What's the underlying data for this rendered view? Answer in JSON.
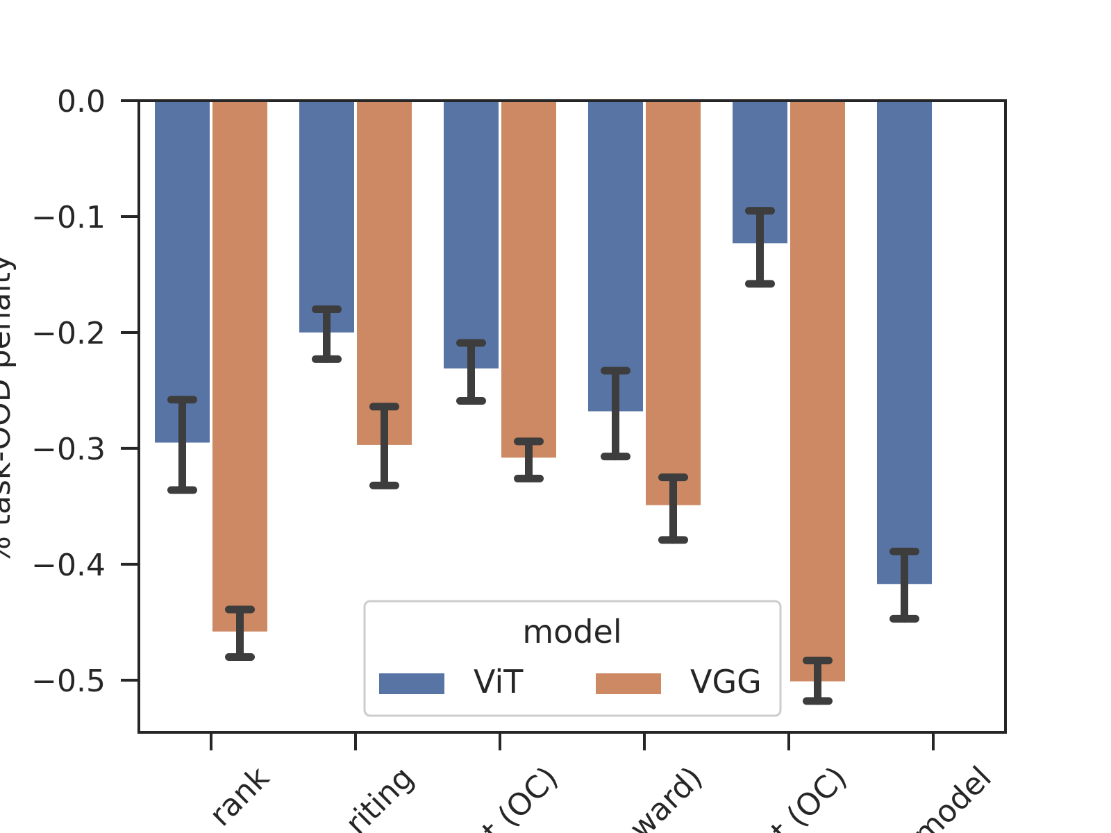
{
  "chart_data": {
    "type": "bar",
    "title": "",
    "xlabel": "",
    "ylabel": "% task-OOD penalty",
    "ylim": [
      -0.545,
      0.0
    ],
    "yticks": [
      0.0,
      -0.1,
      -0.2,
      -0.3,
      -0.4,
      -0.5
    ],
    "ytick_labels": [
      "0.0",
      "−0.1",
      "−0.2",
      "−0.3",
      "−0.4",
      "−0.5"
    ],
    "categories": [
      "Rerank",
      "Handwriting",
      "Font (OC)",
      "Reward (forward)",
      "Font (OC)",
      "model"
    ],
    "category_labels_visible": [
      "rank",
      "riting",
      "t (OC)",
      "ward)",
      "t (OC)",
      "model"
    ],
    "series": [
      {
        "name": "ViT",
        "color": "#5874a4",
        "values": [
          -0.295,
          -0.2,
          -0.231,
          -0.268,
          -0.123,
          -0.417
        ],
        "err_low": [
          -0.336,
          -0.223,
          -0.259,
          -0.307,
          -0.158,
          -0.447
        ],
        "err_high": [
          -0.258,
          -0.18,
          -0.209,
          -0.233,
          -0.095,
          -0.389
        ]
      },
      {
        "name": "VGG",
        "color": "#cc8963",
        "values": [
          -0.458,
          -0.297,
          -0.308,
          -0.349,
          -0.501,
          null
        ],
        "err_low": [
          -0.48,
          -0.332,
          -0.326,
          -0.379,
          -0.518,
          null
        ],
        "err_high": [
          -0.439,
          -0.264,
          -0.294,
          -0.325,
          -0.483,
          null
        ]
      }
    ],
    "error_color": "#3d3d3d",
    "legend": {
      "title": "model",
      "placement": "lower-center",
      "ncol": 2
    }
  }
}
